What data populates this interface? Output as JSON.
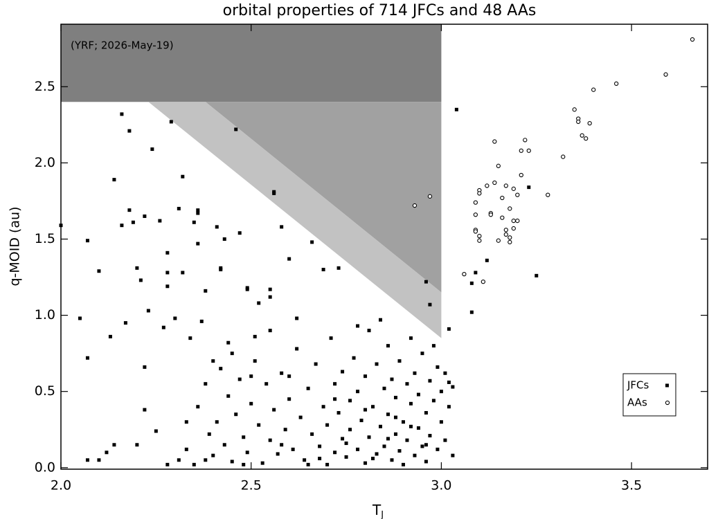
{
  "chart_data": {
    "type": "scatter",
    "title": "orbital properties of 714 JFCs and  48 AAs",
    "x_label": "T",
    "x_label_sub": "J",
    "y_label": "q-MOID (au)",
    "annotation": "(YRF; 2026-May-19)",
    "xlim": [
      2.0,
      3.7
    ],
    "ylim": [
      -0.01,
      2.91
    ],
    "xticks": [
      {
        "value": 2.0,
        "label": "2.0"
      },
      2.5,
      {
        "value": 3.0,
        "label": "3.0"
      },
      3.5
    ],
    "yticks": [
      {
        "value": 0.0,
        "label": "0.0"
      },
      0.5,
      {
        "value": 1.0,
        "label": "1.0"
      },
      1.5,
      {
        "value": 2.0,
        "label": "2.0"
      },
      2.5
    ],
    "legend_position": "lower right",
    "regions": [
      {
        "color": "#7f7f7f",
        "x": [
          2.0,
          3.0,
          3.0,
          2.0
        ],
        "y": [
          2.91,
          2.91,
          2.4,
          2.4
        ]
      },
      {
        "color": "#a1a1a1",
        "x": [
          2.38,
          3.0,
          3.0
        ],
        "y": [
          2.4,
          2.4,
          1.15
        ]
      },
      {
        "color": "#c2c2c2",
        "x": [
          2.23,
          2.38,
          3.0,
          3.0
        ],
        "y": [
          2.4,
          2.4,
          1.15,
          0.85
        ]
      }
    ],
    "series": [
      {
        "name": "JFCs",
        "marker": "square",
        "color": "#000000",
        "x": [
          2.0,
          2.05,
          2.07,
          2.07,
          2.07,
          2.1,
          2.13,
          2.14,
          2.16,
          2.16,
          2.17,
          2.18,
          2.18,
          2.19,
          2.2,
          2.21,
          2.22,
          2.22,
          2.22,
          2.23,
          2.24,
          2.25,
          2.26,
          2.27,
          2.28,
          2.28,
          2.28,
          2.29,
          2.3,
          2.31,
          2.32,
          2.32,
          2.33,
          2.34,
          2.35,
          2.36,
          2.36,
          2.36,
          2.37,
          2.38,
          2.4,
          2.41,
          2.42,
          2.42,
          2.43,
          2.44,
          2.46,
          2.47,
          2.49,
          2.49,
          2.51,
          2.52,
          2.55,
          2.55,
          2.56,
          2.56,
          2.58,
          2.6,
          2.66,
          2.69,
          2.73,
          3.04,
          2.96,
          2.97,
          3.08,
          3.08,
          3.09,
          3.12,
          3.23,
          3.25,
          3.02,
          3.03,
          2.31,
          2.33,
          2.35,
          2.36,
          2.38,
          2.39,
          2.4,
          2.41,
          2.42,
          2.43,
          2.44,
          2.45,
          2.46,
          2.47,
          2.48,
          2.49,
          2.5,
          2.51,
          2.52,
          2.53,
          2.54,
          2.55,
          2.56,
          2.57,
          2.58,
          2.59,
          2.6,
          2.61,
          2.62,
          2.63,
          2.64,
          2.65,
          2.66,
          2.67,
          2.68,
          2.69,
          2.7,
          2.7,
          2.71,
          2.72,
          2.72,
          2.73,
          2.74,
          2.74,
          2.75,
          2.76,
          2.76,
          2.77,
          2.78,
          2.78,
          2.79,
          2.8,
          2.8,
          2.81,
          2.81,
          2.82,
          2.83,
          2.83,
          2.84,
          2.85,
          2.85,
          2.86,
          2.86,
          2.87,
          2.87,
          2.88,
          2.88,
          2.89,
          2.89,
          2.9,
          2.9,
          2.91,
          2.91,
          2.92,
          2.92,
          2.93,
          2.93,
          2.94,
          2.94,
          2.95,
          2.95,
          2.96,
          2.96,
          2.97,
          2.97,
          2.98,
          2.98,
          2.99,
          2.99,
          3.0,
          3.0,
          3.01,
          3.01,
          3.02,
          3.02,
          3.03,
          2.84,
          2.78,
          2.62,
          2.55,
          2.45,
          2.5,
          2.6,
          2.65,
          2.75,
          2.82,
          2.88,
          2.92,
          2.96,
          2.86,
          2.8,
          2.72,
          2.68,
          2.58,
          2.48,
          2.38,
          2.28,
          2.2,
          2.12,
          2.1,
          2.14
        ],
        "values": [
          1.59,
          0.98,
          1.49,
          0.72,
          0.05,
          1.29,
          0.86,
          1.89,
          2.32,
          1.59,
          0.95,
          2.21,
          1.69,
          1.61,
          1.31,
          1.23,
          1.65,
          0.66,
          0.38,
          1.03,
          2.09,
          0.24,
          1.62,
          0.92,
          1.41,
          1.28,
          1.19,
          2.27,
          0.98,
          1.7,
          1.91,
          1.28,
          0.3,
          0.85,
          1.61,
          1.67,
          1.69,
          1.47,
          0.96,
          1.16,
          0.7,
          1.58,
          1.31,
          1.3,
          1.5,
          0.82,
          2.22,
          1.54,
          1.17,
          1.18,
          0.86,
          1.08,
          1.17,
          1.12,
          1.81,
          1.8,
          1.58,
          1.37,
          1.48,
          1.3,
          1.31,
          2.35,
          1.22,
          1.07,
          1.21,
          1.02,
          1.28,
          1.36,
          1.84,
          1.26,
          0.91,
          0.53,
          0.05,
          0.12,
          0.02,
          0.4,
          0.55,
          0.22,
          0.08,
          0.3,
          0.65,
          0.15,
          0.47,
          0.04,
          0.35,
          0.58,
          0.2,
          0.1,
          0.42,
          0.7,
          0.28,
          0.03,
          0.55,
          0.18,
          0.38,
          0.09,
          0.62,
          0.25,
          0.45,
          0.12,
          0.78,
          0.33,
          0.05,
          0.52,
          0.22,
          0.68,
          0.14,
          0.4,
          0.02,
          0.28,
          0.85,
          0.1,
          0.55,
          0.36,
          0.19,
          0.63,
          0.07,
          0.44,
          0.25,
          0.72,
          0.12,
          0.5,
          0.31,
          0.03,
          0.6,
          0.2,
          0.9,
          0.4,
          0.09,
          0.68,
          0.27,
          0.52,
          0.14,
          0.8,
          0.35,
          0.05,
          0.58,
          0.22,
          0.46,
          0.11,
          0.7,
          0.3,
          0.02,
          0.55,
          0.18,
          0.42,
          0.85,
          0.08,
          0.62,
          0.26,
          0.48,
          0.14,
          0.75,
          0.36,
          0.04,
          0.57,
          0.21,
          0.44,
          0.8,
          0.12,
          0.66,
          0.3,
          0.5,
          0.62,
          0.18,
          0.4,
          0.56,
          0.08,
          0.97,
          0.93,
          0.98,
          0.9,
          0.75,
          0.6,
          0.6,
          0.02,
          0.16,
          0.06,
          0.33,
          0.27,
          0.15,
          0.19,
          0.38,
          0.45,
          0.06,
          0.15,
          0.02,
          0.05,
          0.02,
          0.15,
          0.1,
          0.05,
          0.15
        ]
      },
      {
        "name": "AAs",
        "marker": "circle",
        "color": "#000000",
        "x": [
          2.93,
          2.97,
          3.06,
          3.09,
          3.09,
          3.09,
          3.09,
          3.1,
          3.1,
          3.1,
          3.1,
          3.11,
          3.12,
          3.13,
          3.13,
          3.14,
          3.14,
          3.15,
          3.15,
          3.16,
          3.16,
          3.17,
          3.17,
          3.17,
          3.18,
          3.18,
          3.18,
          3.19,
          3.19,
          3.19,
          3.2,
          3.2,
          3.21,
          3.21,
          3.22,
          3.23,
          3.28,
          3.32,
          3.35,
          3.36,
          3.36,
          3.37,
          3.38,
          3.39,
          3.4,
          3.46,
          3.59,
          3.66
        ],
        "values": [
          1.72,
          1.78,
          1.27,
          1.74,
          1.66,
          1.56,
          1.55,
          1.52,
          1.49,
          1.82,
          1.8,
          1.22,
          1.85,
          1.67,
          1.66,
          1.87,
          2.14,
          1.98,
          1.49,
          1.77,
          1.64,
          1.85,
          1.56,
          1.53,
          1.51,
          1.48,
          1.7,
          1.57,
          1.62,
          1.83,
          1.79,
          1.62,
          2.08,
          1.92,
          2.15,
          2.08,
          1.79,
          2.04,
          2.35,
          2.29,
          2.27,
          2.18,
          2.16,
          2.26,
          2.48,
          2.52,
          2.58,
          2.81
        ]
      }
    ]
  }
}
